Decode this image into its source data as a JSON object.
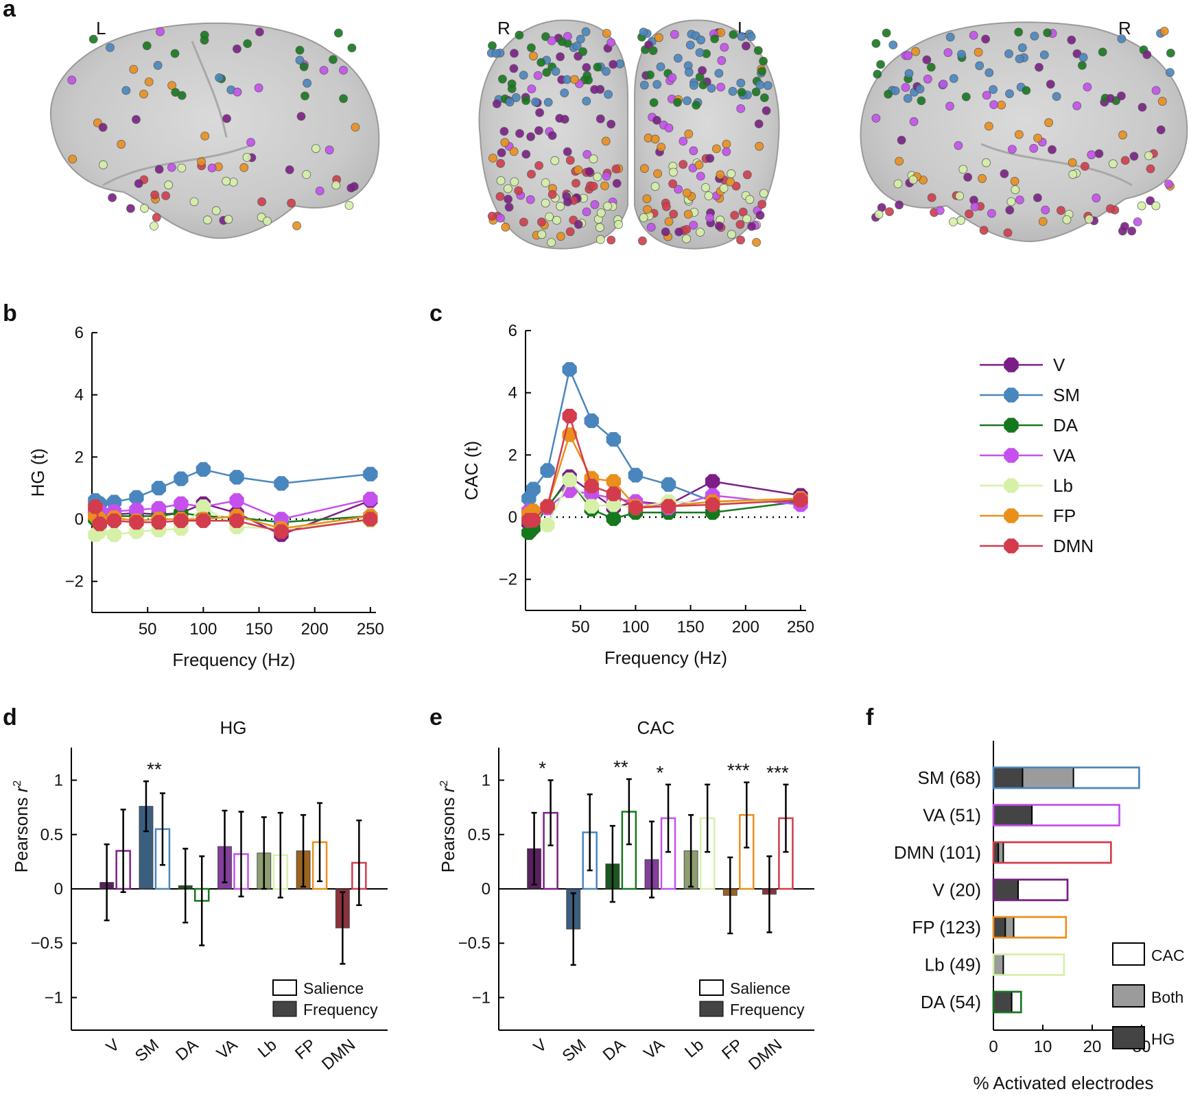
{
  "panels": {
    "a": "a",
    "b": "b",
    "c": "c",
    "d": "d",
    "e": "e",
    "f": "f"
  },
  "colors": {
    "V": "#7b1f86",
    "SM": "#4a86be",
    "DA": "#16781d",
    "VA": "#c550ee",
    "Lb": "#d6f0a8",
    "FP": "#ea8f1c",
    "DMN": "#d23c4c"
  },
  "brain_views": [
    {
      "label": "L"
    },
    {
      "label": "R"
    },
    {
      "label": "L"
    },
    {
      "label": "R"
    }
  ],
  "network_order": [
    "V",
    "SM",
    "DA",
    "VA",
    "Lb",
    "FP",
    "DMN"
  ],
  "legend_lines": {
    "items": [
      "V",
      "SM",
      "DA",
      "VA",
      "Lb",
      "FP",
      "DMN"
    ]
  },
  "chart_data": [
    {
      "id": "b",
      "type": "line",
      "xlabel": "Frequency (Hz)",
      "ylabel": "HG (t)",
      "xlim": [
        0,
        255
      ],
      "ylim": [
        -3,
        6
      ],
      "xticks": [
        50,
        100,
        150,
        200,
        250
      ],
      "yticks": [
        -2,
        0,
        2,
        4,
        6
      ],
      "ytick_labels": [
        "−2",
        "0",
        "2",
        "4",
        "6"
      ],
      "reference_line_y": 0,
      "x": [
        3,
        7,
        20,
        40,
        60,
        80,
        100,
        130,
        170,
        250
      ],
      "series": [
        {
          "name": "V",
          "values": [
            0.2,
            0.1,
            0.15,
            0.2,
            0.15,
            0.2,
            0.5,
            0.2,
            -0.5,
            0.6
          ]
        },
        {
          "name": "SM",
          "values": [
            0.6,
            0.5,
            0.55,
            0.7,
            1.0,
            1.3,
            1.6,
            1.35,
            1.15,
            1.45
          ]
        },
        {
          "name": "DA",
          "values": [
            0.0,
            0.05,
            0.1,
            0.1,
            0.1,
            0.2,
            0.1,
            0.05,
            -0.1,
            0.1
          ]
        },
        {
          "name": "VA",
          "values": [
            0.3,
            0.25,
            0.25,
            0.3,
            0.35,
            0.5,
            0.4,
            0.6,
            0.0,
            0.65
          ]
        },
        {
          "name": "Lb",
          "values": [
            -0.5,
            -0.4,
            -0.5,
            -0.4,
            -0.35,
            -0.3,
            0.4,
            -0.25,
            -0.3,
            -0.05
          ]
        },
        {
          "name": "FP",
          "values": [
            0.1,
            0.0,
            0.05,
            -0.05,
            0.0,
            0.0,
            0.0,
            0.1,
            -0.3,
            0.1
          ]
        },
        {
          "name": "DMN",
          "values": [
            0.4,
            -0.15,
            -0.05,
            -0.1,
            -0.1,
            -0.05,
            -0.05,
            -0.05,
            -0.4,
            0.0
          ]
        }
      ]
    },
    {
      "id": "c",
      "type": "line",
      "xlabel": "Frequency (Hz)",
      "ylabel": "CAC (t)",
      "xlim": [
        0,
        255
      ],
      "ylim": [
        -3,
        6
      ],
      "xticks": [
        50,
        100,
        150,
        200,
        250
      ],
      "yticks": [
        -2,
        0,
        2,
        4,
        6
      ],
      "ytick_labels": [
        "−2",
        "0",
        "2",
        "4",
        "6"
      ],
      "reference_line_y": 0,
      "x": [
        3,
        7,
        20,
        40,
        60,
        80,
        100,
        130,
        170,
        250
      ],
      "series": [
        {
          "name": "V",
          "values": [
            -0.2,
            0.0,
            0.3,
            1.3,
            0.8,
            0.3,
            0.5,
            0.4,
            1.15,
            0.7
          ]
        },
        {
          "name": "SM",
          "values": [
            0.6,
            0.9,
            1.5,
            4.75,
            3.1,
            2.5,
            1.35,
            1.05,
            0.5,
            0.5
          ]
        },
        {
          "name": "DA",
          "values": [
            -0.5,
            -0.35,
            0.35,
            1.2,
            0.25,
            -0.05,
            0.15,
            0.15,
            0.15,
            0.5
          ]
        },
        {
          "name": "VA",
          "values": [
            0.2,
            0.1,
            0.3,
            0.85,
            0.75,
            0.6,
            0.5,
            0.3,
            0.7,
            0.4
          ]
        },
        {
          "name": "Lb",
          "values": [
            -0.1,
            0.0,
            -0.25,
            1.2,
            0.35,
            0.4,
            0.3,
            0.5,
            0.45,
            0.6
          ]
        },
        {
          "name": "FP",
          "values": [
            0.1,
            0.2,
            0.35,
            2.65,
            1.25,
            1.15,
            0.35,
            0.35,
            0.5,
            0.6
          ]
        },
        {
          "name": "DMN",
          "values": [
            -0.1,
            -0.1,
            0.35,
            3.25,
            1.0,
            0.75,
            0.3,
            0.35,
            0.4,
            0.55
          ]
        }
      ]
    },
    {
      "id": "d",
      "type": "bar",
      "title": "HG",
      "ylabel_prefix": "Pearsons ",
      "ylabel_var": "r",
      "ylabel_sup": "2",
      "ylim": [
        -1.3,
        1.3
      ],
      "yticks": [
        -1,
        -0.5,
        0,
        0.5,
        1
      ],
      "ytick_labels": [
        "−1",
        "−0.5",
        "0",
        "0.5",
        "1"
      ],
      "categories": [
        "V",
        "SM",
        "DA",
        "VA",
        "Lb",
        "FP",
        "DMN"
      ],
      "series": [
        {
          "name": "Frequency",
          "values": [
            0.06,
            0.76,
            0.03,
            0.39,
            0.33,
            0.35,
            -0.36
          ],
          "err": [
            0.35,
            0.23,
            0.34,
            0.33,
            0.33,
            0.33,
            0.33
          ]
        },
        {
          "name": "Salience",
          "values": [
            0.35,
            0.55,
            -0.11,
            0.32,
            0.31,
            0.43,
            0.24
          ],
          "err": [
            0.38,
            0.33,
            0.41,
            0.39,
            0.39,
            0.36,
            0.39
          ]
        }
      ],
      "significance": [
        "",
        "**",
        "",
        "",
        "",
        "",
        ""
      ],
      "legend": [
        "Salience",
        "Frequency"
      ]
    },
    {
      "id": "e",
      "type": "bar",
      "title": "CAC",
      "ylabel_prefix": "Pearsons ",
      "ylabel_var": "r",
      "ylabel_sup": "2",
      "ylim": [
        -1.3,
        1.3
      ],
      "yticks": [
        -1,
        -0.5,
        0,
        0.5,
        1
      ],
      "ytick_labels": [
        "−1",
        "−0.5",
        "0",
        "0.5",
        "1"
      ],
      "categories": [
        "V",
        "SM",
        "DA",
        "VA",
        "Lb",
        "FP",
        "DMN"
      ],
      "series": [
        {
          "name": "Frequency",
          "values": [
            0.37,
            -0.37,
            0.23,
            0.27,
            0.35,
            -0.06,
            -0.05
          ],
          "err": [
            0.33,
            0.33,
            0.35,
            0.35,
            0.33,
            0.35,
            0.35
          ]
        },
        {
          "name": "Salience",
          "values": [
            0.7,
            0.52,
            0.71,
            0.65,
            0.65,
            0.68,
            0.65
          ],
          "err": [
            0.3,
            0.35,
            0.3,
            0.31,
            0.31,
            0.3,
            0.31
          ]
        }
      ],
      "significance": [
        "*",
        "",
        "**",
        "*",
        "",
        "***",
        "***"
      ],
      "legend": [
        "Salience",
        "Frequency"
      ]
    },
    {
      "id": "f",
      "type": "bar",
      "orientation": "horizontal",
      "stacked": true,
      "xlabel": "% Activated electrodes",
      "xlim": [
        0,
        30
      ],
      "xticks": [
        0,
        10,
        20,
        30
      ],
      "categories": [
        "SM (68)",
        "VA (51)",
        "DMN (101)",
        "V (20)",
        "FP (123)",
        "Lb (49)",
        "DA (54)"
      ],
      "networks": [
        "SM",
        "VA",
        "DMN",
        "V",
        "FP",
        "Lb",
        "DA"
      ],
      "series": [
        {
          "name": "HG",
          "values": [
            5.9,
            7.8,
            1.0,
            5.0,
            2.4,
            0.0,
            3.7
          ]
        },
        {
          "name": "Both",
          "values": [
            10.3,
            0.0,
            1.0,
            0.0,
            1.7,
            2.0,
            0.0
          ]
        },
        {
          "name": "CAC",
          "values": [
            13.3,
            17.7,
            21.8,
            10.0,
            10.6,
            12.3,
            1.9
          ]
        }
      ],
      "legend": [
        "CAC",
        "Both",
        "HG"
      ]
    }
  ]
}
